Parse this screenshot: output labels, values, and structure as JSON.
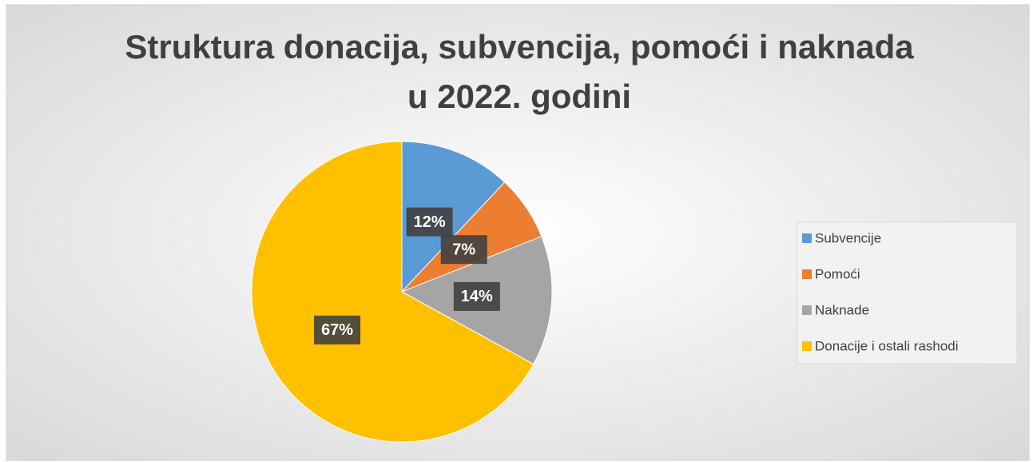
{
  "chart_data": {
    "type": "pie",
    "title": [
      "Struktura donacija, subvencija, pomoći i naknada",
      "u 2022. godini"
    ],
    "categories": [
      "Subvencije",
      "Pomoći",
      "Naknade",
      "Donacije i ostali rashodi"
    ],
    "values": [
      12,
      7,
      14,
      67
    ],
    "value_labels": [
      "12%",
      "7%",
      "14%",
      "67%"
    ],
    "colors": [
      "#5b9bd5",
      "#ed7d31",
      "#a5a5a5",
      "#ffc000"
    ],
    "legend": "right"
  }
}
